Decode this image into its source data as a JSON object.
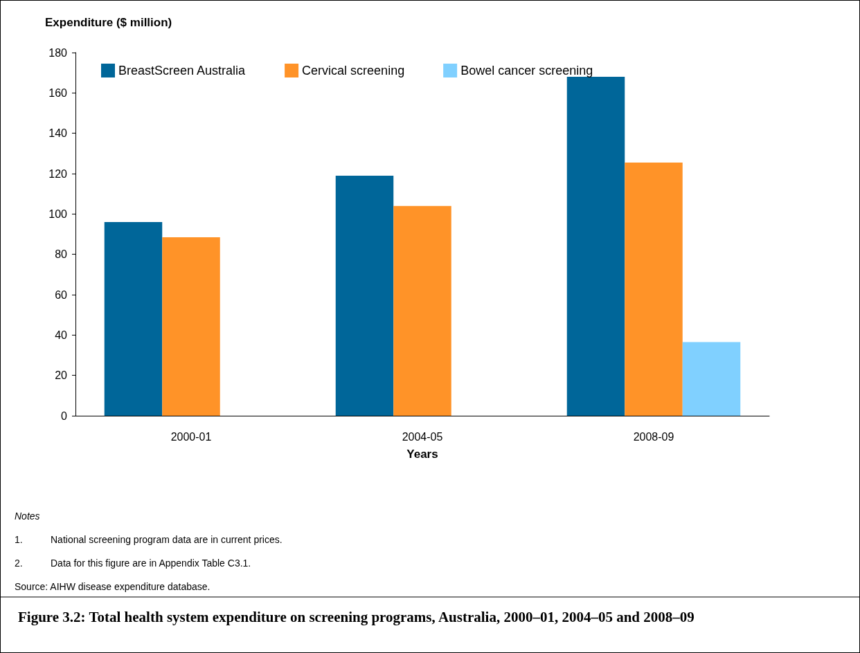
{
  "chart_data": {
    "type": "bar",
    "title": "Figure 3.2: Total health system expenditure on screening programs, Australia, 2000–01, 2004–05 and 2008–09",
    "ylabel": "Expenditure ($ million)",
    "xlabel": "Years",
    "categories": [
      "2000-01",
      "2004-05",
      "2008-09"
    ],
    "series": [
      {
        "name": "BreastScreen Australia",
        "color": "#006699",
        "values": [
          96,
          119,
          168
        ]
      },
      {
        "name": "Cervical screening",
        "color": "#ff9328",
        "values": [
          88.5,
          104,
          125.5
        ]
      },
      {
        "name": "Bowel cancer screening",
        "color": "#80d0ff",
        "values": [
          null,
          null,
          36.5
        ]
      }
    ],
    "ylim": [
      0,
      180
    ],
    "yticks": [
      0,
      20,
      40,
      60,
      80,
      100,
      120,
      140,
      160,
      180
    ],
    "grid": false,
    "legend": "top left",
    "annotations": [
      "Notes",
      "1.\tNational screening program data are in current prices.",
      "2.\tData for this figure are in Appendix Table C3.1.",
      "Source: AIHW disease expenditure database."
    ]
  }
}
